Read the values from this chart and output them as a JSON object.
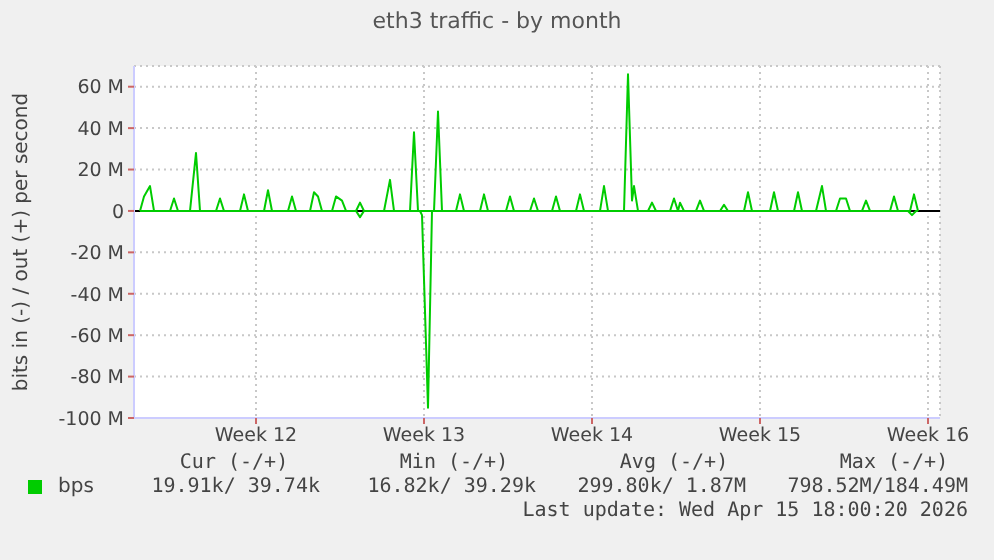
{
  "chart_data": {
    "type": "line",
    "title": "eth3 traffic - by month",
    "ylabel": "bits in (-) / out (+) per second",
    "xlim": [
      "2026-03-10T22:00",
      "2026-04-13T12:00"
    ],
    "xticks": [
      {
        "value": "2026-03-16",
        "label": "Week 12"
      },
      {
        "value": "2026-03-23",
        "label": "Week 13"
      },
      {
        "value": "2026-03-30",
        "label": "Week 14"
      },
      {
        "value": "2026-04-06",
        "label": "Week 15"
      },
      {
        "value": "2026-04-13",
        "label": "Week 16"
      }
    ],
    "ylim": [
      -100,
      70
    ],
    "yticks": [
      {
        "value": -100,
        "label": "-100 M"
      },
      {
        "value": -80,
        "label": "-80 M"
      },
      {
        "value": -60,
        "label": "-60 M"
      },
      {
        "value": -40,
        "label": "-40 M"
      },
      {
        "value": -20,
        "label": "-20 M"
      },
      0,
      {
        "value": 20,
        "label": "20 M"
      },
      {
        "value": 40,
        "label": "40 M"
      },
      {
        "value": 60,
        "label": "60 M"
      }
    ],
    "grid": true,
    "legend": "bottom left",
    "marker": "none",
    "line_style": "solid",
    "ref_lines": [
      {
        "axis": "y",
        "value": 0,
        "color": "#000000"
      }
    ],
    "series": [
      {
        "name": "bps",
        "color": "#00cc00",
        "x": [
          "2026-03-11T04:00",
          "2026-03-11T08:00",
          "2026-03-11T14:00",
          "2026-03-11T18:00",
          "2026-03-12T10:00",
          "2026-03-12T14:00",
          "2026-03-12T18:00",
          "2026-03-13T06:00",
          "2026-03-13T12:00",
          "2026-03-13T16:00",
          "2026-03-14T08:00",
          "2026-03-14T12:00",
          "2026-03-14T16:00",
          "2026-03-15T08:00",
          "2026-03-15T12:00",
          "2026-03-15T16:00",
          "2026-03-16T08:00",
          "2026-03-16T12:00",
          "2026-03-16T16:00",
          "2026-03-17T08:00",
          "2026-03-17T12:00",
          "2026-03-17T16:00",
          "2026-03-18T06:00",
          "2026-03-18T10:00",
          "2026-03-18T14:00",
          "2026-03-18T18:00",
          "2026-03-19T04:00",
          "2026-03-19T08:00",
          "2026-03-19T14:00",
          "2026-03-19T18:00",
          "2026-03-20T04:00",
          "2026-03-20T08:00",
          "2026-03-20T12:00",
          "2026-03-21T08:00",
          "2026-03-21T14:00",
          "2026-03-21T18:00",
          "2026-03-22T10:00",
          "2026-03-22T14:00",
          "2026-03-22T18:00",
          "2026-03-23T10:00",
          "2026-03-23T14:00",
          "2026-03-23T18:00",
          "2026-03-24T08:00",
          "2026-03-24T12:00",
          "2026-03-24T16:00",
          "2026-03-25T08:00",
          "2026-03-25T12:00",
          "2026-03-25T16:00",
          "2026-03-26T10:00",
          "2026-03-26T14:00",
          "2026-03-26T18:00",
          "2026-03-27T10:00",
          "2026-03-27T14:00",
          "2026-03-27T18:00",
          "2026-03-28T08:00",
          "2026-03-28T12:00",
          "2026-03-28T16:00",
          "2026-03-29T08:00",
          "2026-03-29T12:00",
          "2026-03-29T16:00",
          "2026-03-30T08:00",
          "2026-03-30T12:00",
          "2026-03-30T16:00",
          "2026-03-31T08:00",
          "2026-03-31T12:00",
          "2026-03-31T16:00",
          "2026-03-31T18:00",
          "2026-03-31T22:00",
          "2026-04-01T08:00",
          "2026-04-01T12:00",
          "2026-04-01T16:00",
          "2026-04-02T06:00",
          "2026-04-02T10:00",
          "2026-04-02T14:00",
          "2026-04-02T16:00",
          "2026-04-02T20:00",
          "2026-04-03T08:00",
          "2026-04-03T12:00",
          "2026-04-03T16:00",
          "2026-04-04T08:00",
          "2026-04-04T12:00",
          "2026-04-04T16:00",
          "2026-04-05T08:00",
          "2026-04-05T12:00",
          "2026-04-05T16:00",
          "2026-04-06T10:00",
          "2026-04-06T14:00",
          "2026-04-06T18:00",
          "2026-04-07T10:00",
          "2026-04-07T14:00",
          "2026-04-07T18:00",
          "2026-04-08T08:00",
          "2026-04-08T14:00",
          "2026-04-08T18:00",
          "2026-04-09T04:00",
          "2026-04-09T08:00",
          "2026-04-09T14:00",
          "2026-04-09T18:00",
          "2026-04-10T06:00",
          "2026-04-10T10:00",
          "2026-04-10T14:00",
          "2026-04-11T10:00",
          "2026-04-11T14:00",
          "2026-04-11T18:00",
          "2026-04-12T06:00",
          "2026-04-12T10:00",
          "2026-04-12T14:00"
        ],
        "values": [
          0,
          7,
          12,
          0,
          0,
          6,
          0,
          0,
          28,
          0,
          0,
          6,
          0,
          0,
          8,
          0,
          0,
          10,
          0,
          0,
          7,
          0,
          0,
          9,
          7,
          0,
          0,
          7,
          5,
          0,
          0,
          4,
          0,
          0,
          15,
          0,
          0,
          38,
          0,
          0,
          48,
          0,
          0,
          8,
          0,
          0,
          8,
          0,
          0,
          7,
          0,
          0,
          6,
          0,
          0,
          7,
          0,
          0,
          8,
          0,
          0,
          12,
          0,
          0,
          66,
          5,
          12,
          0,
          0,
          4,
          0,
          0,
          6,
          0,
          4,
          0,
          0,
          5,
          0,
          0,
          3,
          0,
          0,
          9,
          0,
          0,
          9,
          0,
          0,
          9,
          0,
          0,
          12,
          0,
          0,
          6,
          6,
          0,
          0,
          5,
          0,
          0,
          7,
          0,
          0,
          8,
          0
        ]
      },
      {
        "color": "#00cc00",
        "x": [
          "2026-03-11T04:00",
          "2026-03-20T04:00",
          "2026-03-20T08:00",
          "2026-03-20T12:00",
          "2026-03-22T20:00",
          "2026-03-22T22:00",
          "2026-03-23T04:00",
          "2026-03-23T08:00",
          "2026-04-12T04:00",
          "2026-04-12T08:00",
          "2026-04-12T12:00",
          "2026-04-12T14:00"
        ],
        "values": [
          0,
          0,
          -3,
          0,
          0,
          -2,
          -95,
          0,
          0,
          -2,
          0,
          0
        ]
      }
    ],
    "annotations": [
      "Cur (-/+)",
      "Min (-/+)",
      "Avg (-/+)",
      "Max (-/+)",
      "19.91k/ 39.74k",
      "16.82k/ 39.29k",
      "299.80k/ 1.87M",
      "798.52M/184.49M",
      "Last update: Wed Apr 15 18:00:20 2026"
    ]
  }
}
